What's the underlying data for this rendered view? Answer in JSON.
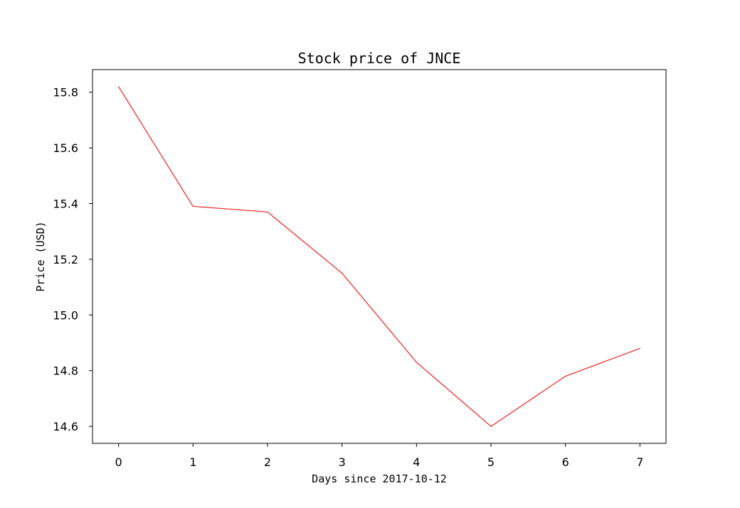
{
  "chart_data": {
    "type": "line",
    "title": "Stock price of JNCE",
    "xlabel": "Days since 2017-10-12",
    "ylabel": "Price (USD)",
    "x": [
      0,
      1,
      2,
      3,
      4,
      5,
      6,
      7
    ],
    "series": [
      {
        "color": "#e8231f",
        "values": [
          15.82,
          15.39,
          15.37,
          15.15,
          14.83,
          14.6,
          14.78,
          14.88
        ]
      }
    ],
    "x_ticks": [
      0,
      1,
      2,
      3,
      4,
      5,
      6,
      7
    ],
    "x_tick_labels": [
      "0",
      "1",
      "2",
      "3",
      "4",
      "5",
      "6",
      "7"
    ],
    "y_ticks": [
      14.6,
      14.8,
      15.0,
      15.2,
      15.4,
      15.6,
      15.8
    ],
    "y_tick_labels": [
      "14.6",
      "14.8",
      "15.0",
      "15.2",
      "15.4",
      "15.6",
      "15.8"
    ],
    "xlim": [
      -0.35,
      7.35
    ],
    "ylim": [
      14.539,
      15.881
    ],
    "grid": false,
    "legend": "none"
  }
}
